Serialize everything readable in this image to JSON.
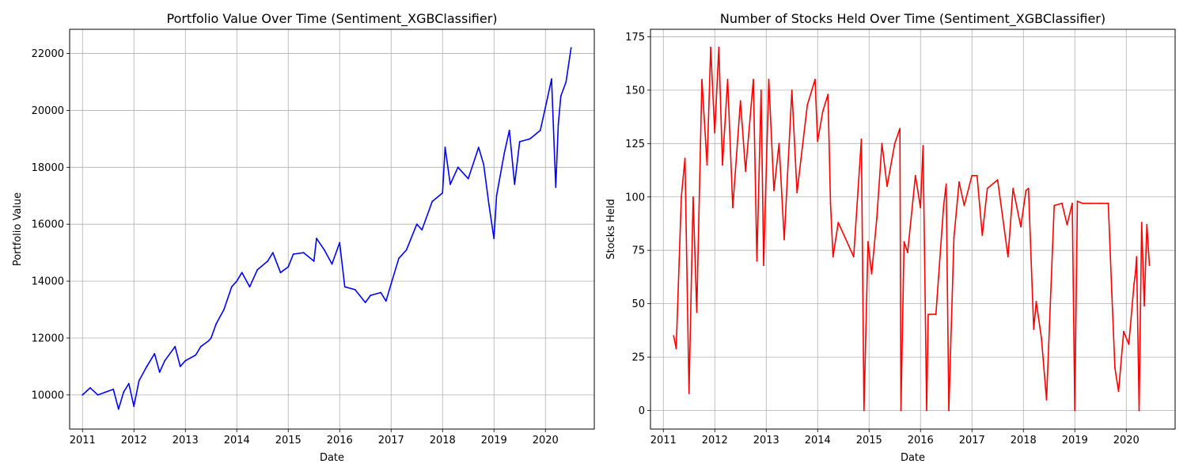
{
  "chart_data": [
    {
      "type": "line",
      "title": "Portfolio Value Over Time (Sentiment_XGBClassifier)",
      "xlabel": "Date",
      "ylabel": "Portfolio Value",
      "xlim": [
        2010.75,
        2020.95
      ],
      "ylim": [
        8800,
        22850
      ],
      "xticks": [
        2011,
        2012,
        2013,
        2014,
        2015,
        2016,
        2017,
        2018,
        2019,
        2020
      ],
      "yticks": [
        10000,
        12000,
        14000,
        16000,
        18000,
        20000,
        22000
      ],
      "grid": true,
      "color": "#0000ff",
      "x": [
        2011.0,
        2011.15,
        2011.3,
        2011.45,
        2011.6,
        2011.7,
        2011.8,
        2011.9,
        2012.0,
        2012.1,
        2012.25,
        2012.4,
        2012.5,
        2012.6,
        2012.8,
        2012.9,
        2013.0,
        2013.2,
        2013.3,
        2013.45,
        2013.5,
        2013.6,
        2013.75,
        2013.9,
        2014.0,
        2014.1,
        2014.25,
        2014.4,
        2014.6,
        2014.7,
        2014.85,
        2015.0,
        2015.1,
        2015.3,
        2015.5,
        2015.55,
        2015.7,
        2015.85,
        2016.0,
        2016.1,
        2016.3,
        2016.5,
        2016.6,
        2016.8,
        2016.9,
        2017.0,
        2017.15,
        2017.3,
        2017.5,
        2017.6,
        2017.8,
        2018.0,
        2018.05,
        2018.15,
        2018.3,
        2018.5,
        2018.7,
        2018.8,
        2018.9,
        2019.0,
        2019.05,
        2019.2,
        2019.3,
        2019.4,
        2019.5,
        2019.7,
        2019.9,
        2020.0,
        2020.12,
        2020.2,
        2020.25,
        2020.3,
        2020.4,
        2020.5
      ],
      "y": [
        10000,
        10250,
        10000,
        10100,
        10200,
        9500,
        10100,
        10400,
        9600,
        10500,
        11000,
        11450,
        10800,
        11200,
        11700,
        11000,
        11200,
        11400,
        11700,
        11900,
        12000,
        12500,
        13000,
        13800,
        14000,
        14300,
        13800,
        14400,
        14700,
        15000,
        14300,
        14500,
        14950,
        15000,
        14700,
        15500,
        15100,
        14600,
        15350,
        13800,
        13700,
        13250,
        13500,
        13600,
        13300,
        13900,
        14800,
        15100,
        16000,
        15800,
        16800,
        17100,
        18700,
        17400,
        18000,
        17600,
        18700,
        18100,
        16700,
        15500,
        17000,
        18500,
        19300,
        17400,
        18900,
        19000,
        19300,
        20100,
        21100,
        17300,
        19500,
        20500,
        21000,
        22200
      ]
    },
    {
      "type": "line",
      "title": "Number of Stocks Held Over Time (Sentiment_XGBClassifier)",
      "xlabel": "Date",
      "ylabel": "Stocks Held",
      "xlim": [
        2010.75,
        2020.95
      ],
      "ylim": [
        -8.7,
        178.5
      ],
      "xticks": [
        2011,
        2012,
        2013,
        2014,
        2015,
        2016,
        2017,
        2018,
        2019,
        2020
      ],
      "yticks": [
        0,
        25,
        50,
        75,
        100,
        125,
        150,
        175
      ],
      "grid": true,
      "color": "#ff0000",
      "x": [
        2011.2,
        2011.25,
        2011.35,
        2011.42,
        2011.5,
        2011.58,
        2011.65,
        2011.75,
        2011.85,
        2011.92,
        2012.0,
        2012.08,
        2012.15,
        2012.25,
        2012.35,
        2012.5,
        2012.6,
        2012.75,
        2012.82,
        2012.9,
        2012.95,
        2013.05,
        2013.15,
        2013.25,
        2013.35,
        2013.5,
        2013.6,
        2013.8,
        2013.95,
        2014.0,
        2014.1,
        2014.2,
        2014.25,
        2014.3,
        2014.4,
        2014.7,
        2014.85,
        2014.9,
        2014.98,
        2015.05,
        2015.15,
        2015.25,
        2015.35,
        2015.5,
        2015.6,
        2015.62,
        2015.68,
        2015.75,
        2015.9,
        2016.0,
        2016.05,
        2016.12,
        2016.15,
        2016.3,
        2016.45,
        2016.5,
        2016.55,
        2016.65,
        2016.75,
        2016.85,
        2017.0,
        2017.1,
        2017.2,
        2017.3,
        2017.5,
        2017.7,
        2017.8,
        2017.95,
        2018.05,
        2018.1,
        2018.2,
        2018.25,
        2018.35,
        2018.45,
        2018.6,
        2018.75,
        2018.85,
        2018.95,
        2019.0,
        2019.05,
        2019.15,
        2019.3,
        2019.5,
        2019.65,
        2019.72,
        2019.78,
        2019.85,
        2019.95,
        2020.05,
        2020.15,
        2020.18,
        2020.2,
        2020.25,
        2020.3,
        2020.35,
        2020.4,
        2020.45
      ],
      "y": [
        35,
        29,
        100,
        118,
        8,
        100,
        46,
        155,
        115,
        170,
        130,
        170,
        115,
        155,
        95,
        145,
        112,
        155,
        70,
        150,
        68,
        155,
        103,
        125,
        80,
        150,
        102,
        143,
        155,
        126,
        140,
        148,
        97,
        72,
        88,
        72,
        127,
        0,
        79,
        64,
        90,
        125,
        105,
        125,
        132,
        0,
        79,
        74,
        110,
        95,
        124,
        0,
        45,
        45,
        96,
        106,
        0,
        81,
        107,
        96,
        110,
        110,
        82,
        104,
        108,
        72,
        104,
        86,
        103,
        104,
        38,
        51,
        34,
        5,
        96,
        97,
        87,
        97,
        0,
        98,
        97,
        97,
        97,
        97,
        55,
        20,
        9,
        37,
        31,
        59,
        65,
        72,
        0,
        88,
        49,
        87,
        68
      ]
    }
  ]
}
